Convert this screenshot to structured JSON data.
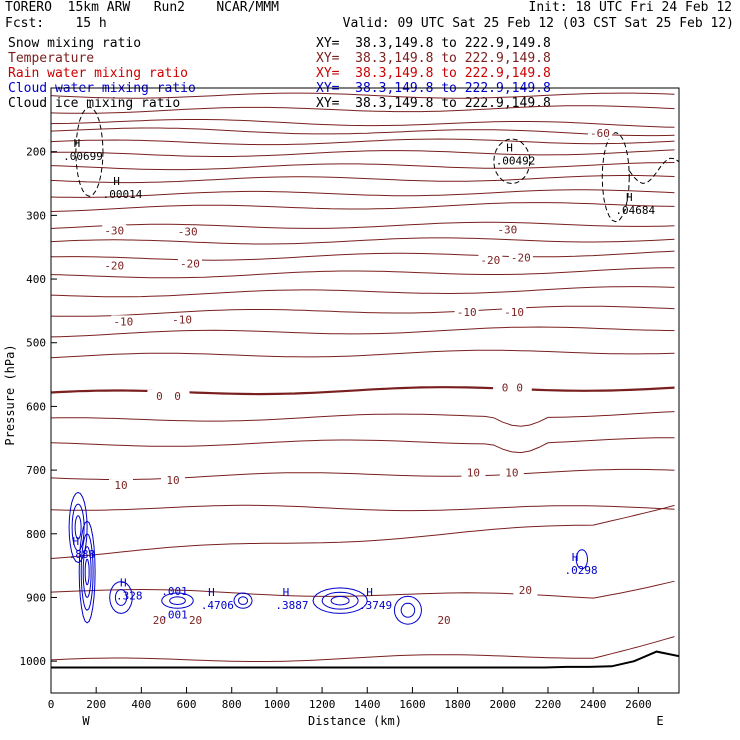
{
  "header": {
    "model": "TORERO  15km ARW   Run2    NCAR/MMM",
    "init": "Init: 18 UTC Fri 24 Feb 12",
    "fcst": "Fcst:    15 h",
    "valid": "Valid: 09 UTC Sat 25 Feb 12 (03 CST Sat 25 Feb 12)",
    "fields": [
      {
        "label": "Snow mixing ratio",
        "color": "#000000",
        "xy": "XY=  38.3,149.8 to 222.9,149.8"
      },
      {
        "label": "Temperature",
        "color": "#7a1f1f",
        "xy": "XY=  38.3,149.8 to 222.9,149.8"
      },
      {
        "label": "Rain water mixing ratio",
        "color": "#cc0000",
        "xy": "XY=  38.3,149.8 to 222.9,149.8"
      },
      {
        "label": "Cloud water mixing ratio",
        "color": "#0000cc",
        "xy": "XY=  38.3,149.8 to 222.9,149.8"
      },
      {
        "label": "Cloud ice mixing ratio",
        "color": "#000000",
        "xy": "XY=  38.3,149.8 to 222.9,149.8"
      }
    ]
  },
  "chart_data": {
    "type": "contour",
    "xlabel": "Distance (km)",
    "ylabel": "Pressure (hPa)",
    "xlim": [
      0,
      2780
    ],
    "ylim": [
      1050,
      100
    ],
    "xticks": [
      0,
      200,
      400,
      600,
      800,
      1000,
      1200,
      1400,
      1600,
      1800,
      2000,
      2200,
      2400,
      2600
    ],
    "yticks": [
      200,
      300,
      400,
      500,
      600,
      700,
      800,
      900,
      1000
    ],
    "left_end": "W",
    "right_end": "E",
    "colors": {
      "temperature": "#7a1f1f",
      "cloud_water": "#0000cc",
      "ice": "#000000",
      "terrain": "#000000"
    },
    "temperature_contours": [
      {
        "p0": 112,
        "p1": 112,
        "level": null
      },
      {
        "p0": 136,
        "p1": 131,
        "level": null
      },
      {
        "p0": 152,
        "p1": 158,
        "level": "-60"
      },
      {
        "p0": 166,
        "p1": 171,
        "level": null
      },
      {
        "p0": 186,
        "p1": 183,
        "level": null
      },
      {
        "p0": 205,
        "p1": 200,
        "level": null
      },
      {
        "p0": 225,
        "p1": 221,
        "level": null
      },
      {
        "p0": 245,
        "p1": 241,
        "level": null
      },
      {
        "p0": 268,
        "p1": 263,
        "level": null
      },
      {
        "p0": 290,
        "p1": 282,
        "level": null
      },
      {
        "p0": 319,
        "p1": 313,
        "level": "-30"
      },
      {
        "p0": 343,
        "p1": 337,
        "level": null
      },
      {
        "p0": 369,
        "p1": 359,
        "level": "-20"
      },
      {
        "p0": 396,
        "p1": 386,
        "level": null
      },
      {
        "p0": 425,
        "p1": 415,
        "level": null
      },
      {
        "p0": 455,
        "p1": 445,
        "level": "-10"
      },
      {
        "p0": 487,
        "p1": 477,
        "level": null
      },
      {
        "p0": 522,
        "p1": 513,
        "level": null
      },
      {
        "p0": 580,
        "p1": 570,
        "level": "0"
      },
      {
        "p0": 622,
        "p1": 611,
        "level": null
      },
      {
        "p0": 660,
        "p1": 653,
        "level": null
      },
      {
        "p0": 712,
        "p1": 702,
        "level": "10"
      },
      {
        "p0": 759,
        "p1": 760,
        "level": null
      },
      {
        "p0": 835,
        "p1": 780,
        "level": null
      },
      {
        "p0": 890,
        "p1": 900,
        "level": "20"
      },
      {
        "p0": 1000,
        "p1": 990,
        "level": null
      }
    ],
    "contour_labels": [
      {
        "x": 280,
        "p": 325,
        "text": "-30"
      },
      {
        "x": 605,
        "p": 327,
        "text": "-30"
      },
      {
        "x": 2020,
        "p": 324,
        "text": "-30"
      },
      {
        "x": 280,
        "p": 380,
        "text": "-20"
      },
      {
        "x": 615,
        "p": 377,
        "text": "-20"
      },
      {
        "x": 1945,
        "p": 372,
        "text": "-20"
      },
      {
        "x": 2080,
        "p": 368,
        "text": "-20"
      },
      {
        "x": 320,
        "p": 468,
        "text": "-10"
      },
      {
        "x": 580,
        "p": 465,
        "text": "-10"
      },
      {
        "x": 1840,
        "p": 453,
        "text": "-10"
      },
      {
        "x": 2050,
        "p": 453,
        "text": "-10"
      },
      {
        "x": 480,
        "p": 585,
        "text": "0"
      },
      {
        "x": 560,
        "p": 585,
        "text": "0"
      },
      {
        "x": 2010,
        "p": 572,
        "text": "0"
      },
      {
        "x": 2075,
        "p": 572,
        "text": "0"
      },
      {
        "x": 310,
        "p": 725,
        "text": "10"
      },
      {
        "x": 540,
        "p": 717,
        "text": "10"
      },
      {
        "x": 1870,
        "p": 705,
        "text": "10"
      },
      {
        "x": 2040,
        "p": 705,
        "text": "10"
      },
      {
        "x": 480,
        "p": 937,
        "text": "20"
      },
      {
        "x": 640,
        "p": 937,
        "text": "20"
      },
      {
        "x": 1740,
        "p": 937,
        "text": "20"
      },
      {
        "x": 2100,
        "p": 890,
        "text": "20"
      },
      {
        "x": 2430,
        "p": 172,
        "text": "-60"
      }
    ],
    "maxima": [
      {
        "x": 115,
        "p": 205,
        "h": "H",
        "value": ".00699"
      },
      {
        "x": 290,
        "p": 265,
        "h": "H",
        "value": ".00014"
      },
      {
        "x": 2030,
        "p": 212,
        "h": "H",
        "value": ".00492"
      },
      {
        "x": 2560,
        "p": 290,
        "h": "H",
        "value": ".04684"
      },
      {
        "x": 110,
        "p": 830,
        "h": "H",
        "value": ".888"
      },
      {
        "x": 320,
        "p": 895,
        "h": "H",
        "value": ".328"
      },
      {
        "x": 520,
        "p": 888,
        "h": "",
        "value": ".001"
      },
      {
        "x": 520,
        "p": 925,
        "h": "",
        "value": ".001"
      },
      {
        "x": 710,
        "p": 910,
        "h": "H",
        "value": ".4706"
      },
      {
        "x": 1040,
        "p": 910,
        "h": "H",
        "value": ".3887"
      },
      {
        "x": 1410,
        "p": 910,
        "h": "H",
        "value": ".3749"
      },
      {
        "x": 2320,
        "p": 855,
        "h": "H",
        "value": ".0298"
      }
    ],
    "terrain_p": [
      1010,
      1010,
      1010,
      1010,
      1010,
      1010,
      1010,
      1010,
      1010,
      1010,
      1010,
      1010,
      1010,
      1010,
      1010,
      1010,
      1010,
      1010,
      1010,
      1010,
      1010,
      1010,
      1010,
      1009,
      1009,
      1008,
      1000,
      985,
      992
    ]
  }
}
